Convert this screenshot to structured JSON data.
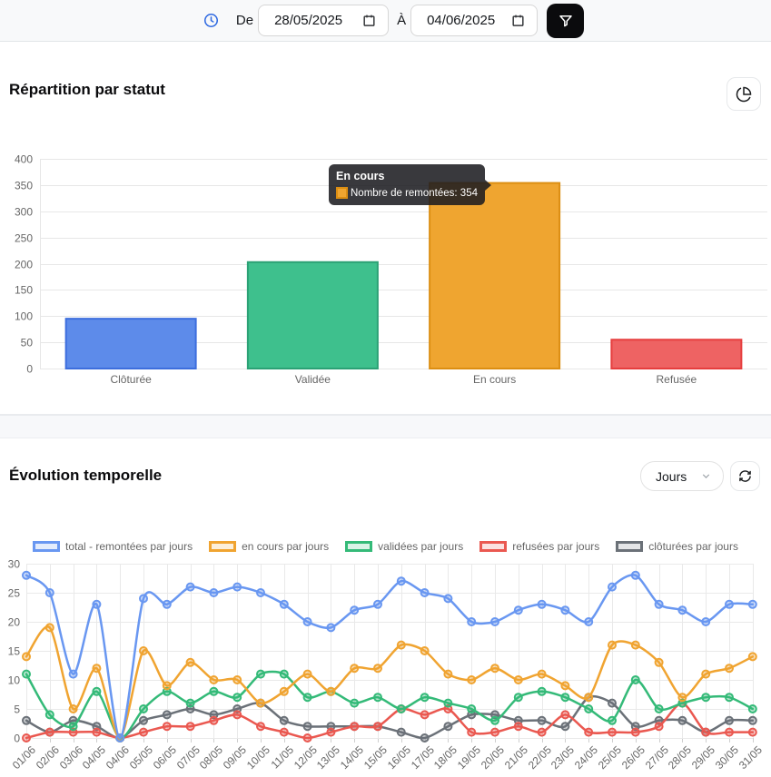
{
  "topbar": {
    "from_label": "De",
    "to_label": "À",
    "date_from": "28/05/2025",
    "date_to": "04/06/2025"
  },
  "sections": [
    {
      "title": "Répartition par statut"
    },
    {
      "title": "Évolution temporelle",
      "period_select_value": "Jours"
    }
  ],
  "colors": {
    "topbar_bg": "#f8f9fa",
    "accent_blue": "#2f6ae1",
    "filter_btn_bg": "#0b0b0d",
    "grid": "#e7e7e7",
    "tick_text": "#666666"
  },
  "chart_data": [
    {
      "type": "bar",
      "title": "Répartition par statut",
      "categories": [
        "Clôturée",
        "Validée",
        "En cours",
        "Refusée"
      ],
      "values": [
        95,
        203,
        354,
        55
      ],
      "bar_colors": [
        {
          "fill": "#5d8bea",
          "stroke": "#3d6edd"
        },
        {
          "fill": "#3ec08d",
          "stroke": "#2ba175"
        },
        {
          "fill": "#efa530",
          "stroke": "#dc8e12"
        },
        {
          "fill": "#ee6363",
          "stroke": "#e63e3e"
        }
      ],
      "ylabel": "",
      "xlabel": "",
      "ylim": [
        0,
        400
      ],
      "ytick_step": 50,
      "grid": true,
      "tooltip": {
        "title": "En cours",
        "text": "Nombre de remontées: 354",
        "swatch_fill": "#efa530",
        "swatch_stroke": "#dc8e12"
      }
    },
    {
      "type": "line",
      "title": "Évolution temporelle",
      "categories": [
        "01/06",
        "02/06",
        "03/06",
        "04/05",
        "04/06",
        "05/05",
        "06/05",
        "07/05",
        "08/05",
        "09/05",
        "10/05",
        "11/05",
        "12/05",
        "13/05",
        "14/05",
        "15/05",
        "16/05",
        "17/05",
        "18/05",
        "19/05",
        "20/05",
        "21/05",
        "22/05",
        "23/05",
        "24/05",
        "25/05",
        "26/05",
        "27/05",
        "28/05",
        "29/05",
        "30/05",
        "31/05"
      ],
      "ylim": [
        0,
        30
      ],
      "ytick_step": 5,
      "grid": true,
      "legend_position": "top",
      "series": [
        {
          "name": "total - remontées par jours",
          "color": "#6997f1",
          "values": [
            28,
            25,
            11,
            23,
            0,
            24,
            23,
            26,
            25,
            26,
            25,
            23,
            20,
            19,
            22,
            23,
            27,
            25,
            24,
            20,
            20,
            22,
            23,
            22,
            20,
            26,
            28,
            23,
            22,
            20,
            23,
            23
          ]
        },
        {
          "name": "en cours par jours",
          "color": "#f0a431",
          "values": [
            14,
            19,
            5,
            12,
            0,
            15,
            9,
            13,
            10,
            10,
            6,
            8,
            11,
            8,
            12,
            12,
            16,
            15,
            11,
            10,
            12,
            10,
            11,
            9,
            7,
            16,
            16,
            13,
            7,
            11,
            12,
            14
          ]
        },
        {
          "name": "validées par jours",
          "color": "#34ba78",
          "values": [
            11,
            4,
            2,
            8,
            0,
            5,
            8,
            6,
            8,
            7,
            11,
            11,
            7,
            8,
            6,
            7,
            5,
            7,
            6,
            5,
            3,
            7,
            8,
            7,
            5,
            3,
            10,
            5,
            6,
            7,
            7,
            5
          ]
        },
        {
          "name": "refusées par jours",
          "color": "#ea5850",
          "values": [
            0,
            1,
            1,
            1,
            0,
            1,
            2,
            2,
            3,
            4,
            2,
            1,
            0,
            1,
            2,
            2,
            5,
            4,
            5,
            1,
            1,
            2,
            1,
            4,
            1,
            1,
            1,
            2,
            6,
            1,
            1,
            1
          ]
        },
        {
          "name": "clôturées par jours",
          "color": "#6b7178",
          "values": [
            3,
            1,
            3,
            2,
            0,
            3,
            4,
            5,
            4,
            5,
            6,
            3,
            2,
            2,
            2,
            2,
            1,
            0,
            2,
            4,
            4,
            3,
            3,
            2,
            7,
            6,
            2,
            3,
            3,
            1,
            3,
            3
          ]
        }
      ]
    }
  ]
}
